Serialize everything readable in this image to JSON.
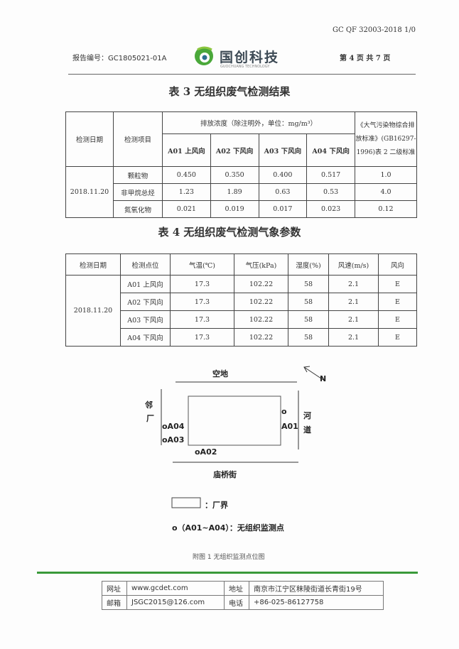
{
  "header": {
    "doc_code": "GC QF 32003-2018 1/0",
    "report_no": "报告编号：GC1805021-01A",
    "logo_cn": "国创科技",
    "logo_en": "GUOCHUANG TECHNOLOGY",
    "page_info": "第 4 页 共 7 页"
  },
  "table3": {
    "title": "表 3  无组织废气检测结果",
    "h_date": "检测日期",
    "h_item": "检测项目",
    "h_conc": "排放浓度（除注明外，单位：mg/m³）",
    "h_std": "《大气污染物综合排放标准》(GB16297-1996)表 2 二级标准",
    "points": [
      "A01 上风向",
      "A02  下风向",
      "A03 下风向",
      "A04 下风向"
    ],
    "date": "2018.11.20",
    "rows": [
      {
        "item": "颗粒物",
        "v": [
          "0.450",
          "0.350",
          "0.400",
          "0.517"
        ],
        "std": "1.0"
      },
      {
        "item": "非甲烷总烃",
        "v": [
          "1.23",
          "1.89",
          "0.63",
          "0.53"
        ],
        "std": "4.0"
      },
      {
        "item": "氮氧化物",
        "v": [
          "0.021",
          "0.019",
          "0.017",
          "0.023"
        ],
        "std": "0.12"
      }
    ]
  },
  "table4": {
    "title": "表 4  无组织废气检测气象参数",
    "headers": [
      "检测日期",
      "检测点位",
      "气温(℃)",
      "气压(kPa)",
      "湿度(%)",
      "风速(m/s)",
      "风向"
    ],
    "date": "2018.11.20",
    "rows": [
      [
        "A01 上风向",
        "17.3",
        "102.22",
        "58",
        "2.1",
        "E"
      ],
      [
        "A02 下风向",
        "17.3",
        "102.22",
        "58",
        "2.1",
        "E"
      ],
      [
        "A03 下风向",
        "17.3",
        "102.22",
        "58",
        "2.1",
        "E"
      ],
      [
        "A04 下风向",
        "17.3",
        "102.22",
        "58",
        "2.1",
        "E"
      ]
    ]
  },
  "diagram": {
    "top": "空地",
    "left1": "邻",
    "left2": "厂",
    "right1": "河",
    "right2": "道",
    "bottom": "庙桥街",
    "north": "N",
    "a01": "A01",
    "a02": "oA02",
    "a03": "oA03",
    "a04": "oA04",
    "a01_mark": "o",
    "legend_boundary": "：厂界",
    "legend_points": "o（A01~A04）：无组织监测点",
    "caption": "附图 1  无组织监测点位图"
  },
  "footer": {
    "web_label": "网址",
    "web": "www.gcdet.com",
    "addr_label": "地址",
    "addr": "南京市江宁区秣陵街道长青街19号",
    "mail_label": "邮箱",
    "mail": "JSGC2015@126.com",
    "tel_label": "电话",
    "tel": "+86-025-86127758"
  },
  "colors": {
    "brand_green": "#3a9a3a"
  }
}
